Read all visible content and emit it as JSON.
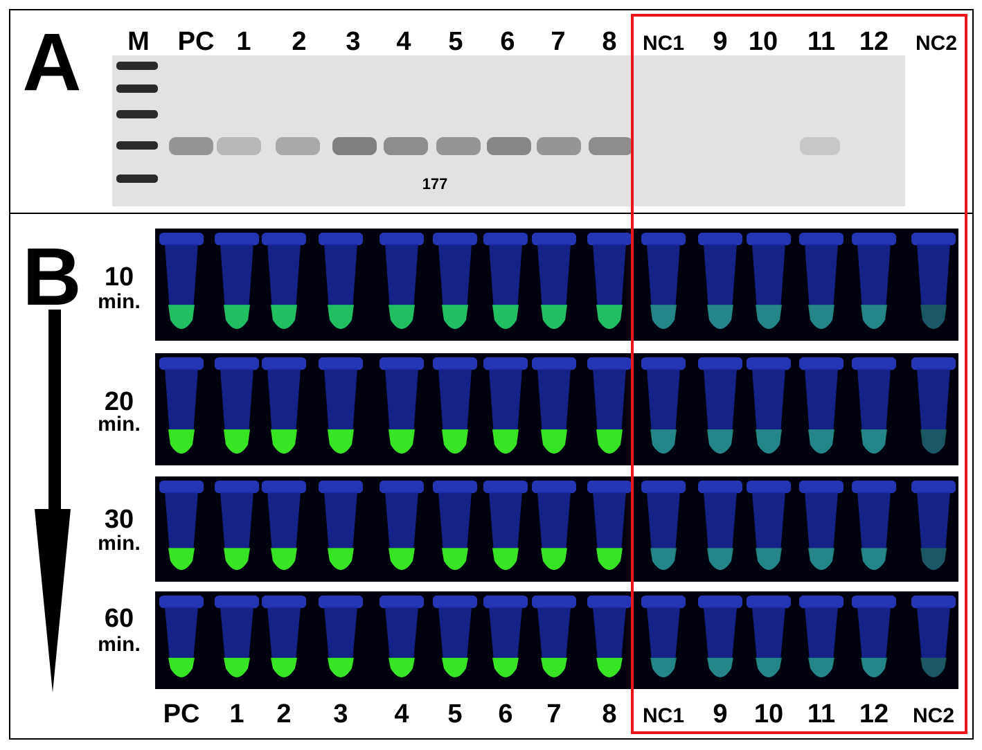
{
  "panel_a": {
    "label": "A",
    "lanes": [
      "M",
      "PC",
      "1",
      "2",
      "3",
      "4",
      "5",
      "6",
      "7",
      "8",
      "NC1",
      "9",
      "10",
      "11",
      "12",
      "NC2"
    ],
    "marker_label": "177"
  },
  "panel_b": {
    "label": "B",
    "times": [
      {
        "value": "10",
        "unit": "min."
      },
      {
        "value": "20",
        "unit": "min."
      },
      {
        "value": "30",
        "unit": "min."
      },
      {
        "value": "60",
        "unit": "min."
      }
    ],
    "lanes": [
      "PC",
      "1",
      "2",
      "3",
      "4",
      "5",
      "6",
      "7",
      "8",
      "NC1",
      "9",
      "10",
      "11",
      "12",
      "NC2"
    ]
  }
}
